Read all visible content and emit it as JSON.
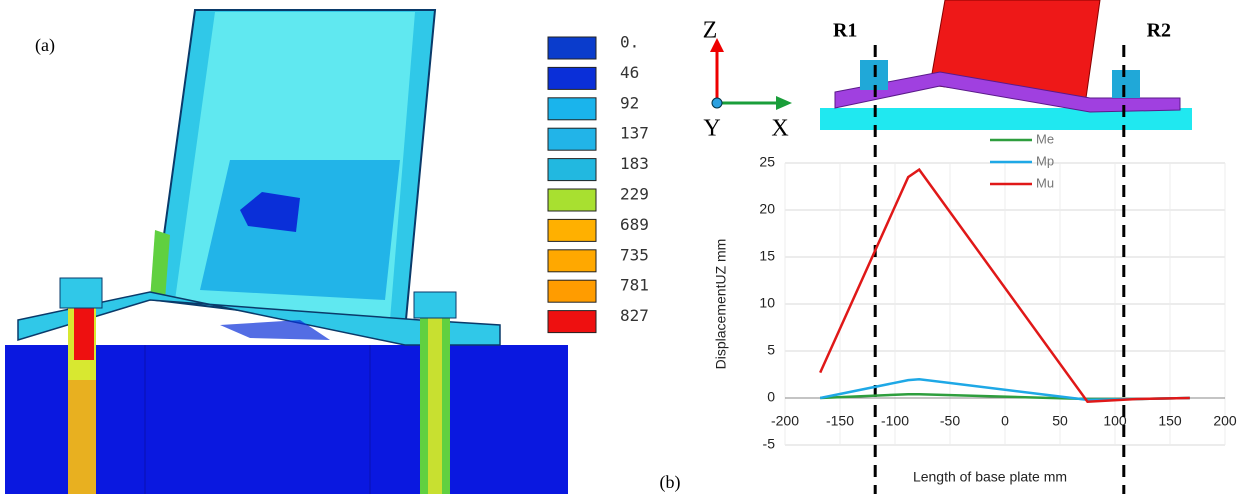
{
  "panel_a": {
    "label": "(a)",
    "legend": {
      "labels": [
        "0.",
        "46",
        "92",
        "137",
        "183",
        "229",
        "689",
        "735",
        "781",
        "827"
      ],
      "colors": [
        "#0a3ccc",
        "#0a2fd8",
        "#1ab4ec",
        "#22b4e8",
        "#22b8e0",
        "#a8e030",
        "#ffb000",
        "#ffa800",
        "#ff9c00",
        "#ee1010"
      ]
    }
  },
  "panel_b": {
    "label": "(b)",
    "axis_z": "Z",
    "axis_x": "X",
    "axis_y": "Y"
  },
  "chart_data": {
    "type": "line",
    "xlabel": "Length of base plate mm",
    "ylabel": "DisplacementUZ  mm",
    "x": [
      -168,
      -88,
      -78,
      75,
      120,
      168
    ],
    "series": [
      {
        "name": "Me",
        "color": "#2e9e3e",
        "values": [
          0,
          0.4,
          0.4,
          -0.1,
          -0.1,
          0
        ]
      },
      {
        "name": "Mp",
        "color": "#1ea8e6",
        "values": [
          0,
          1.9,
          2,
          -0.2,
          -0.1,
          0
        ]
      },
      {
        "name": "Mu",
        "color": "#e01818",
        "values": [
          2.7,
          23.5,
          24.3,
          -0.4,
          -0.1,
          0
        ]
      }
    ],
    "reference_lines": [
      {
        "label": "R1",
        "x": -118
      },
      {
        "label": "R2",
        "x": 108
      }
    ],
    "xlim": [
      -200,
      200
    ],
    "xticks": [
      -200,
      -150,
      -100,
      -50,
      0,
      50,
      100,
      150,
      200
    ],
    "ylim": [
      -5,
      25
    ],
    "yticks": [
      -5,
      0,
      5,
      10,
      15,
      20,
      25
    ],
    "grid": true
  }
}
